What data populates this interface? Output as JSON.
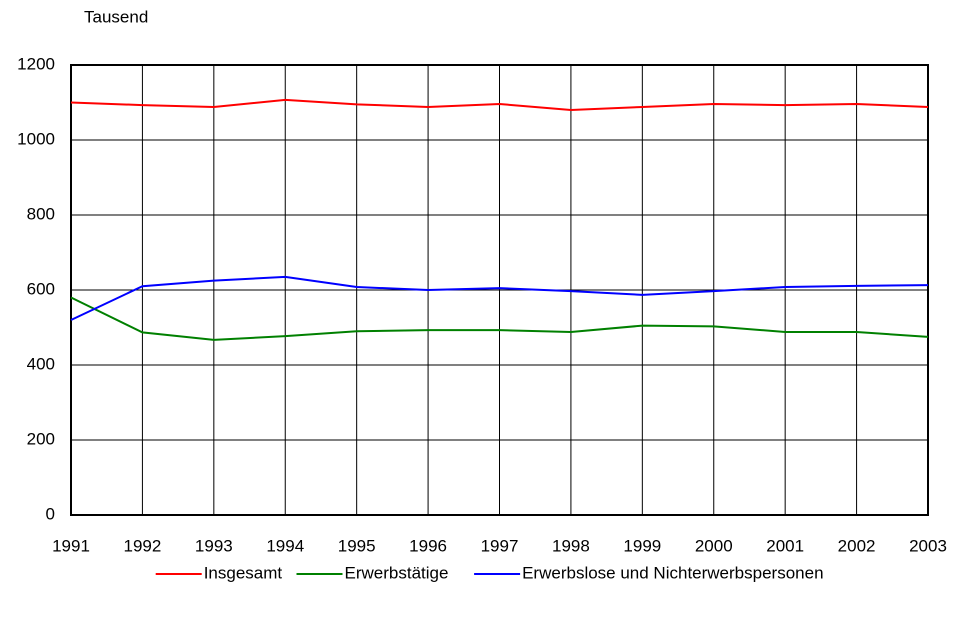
{
  "chart_data": {
    "type": "line",
    "y_label": "Tausend",
    "x": [
      1991,
      1992,
      1993,
      1994,
      1995,
      1996,
      1997,
      1998,
      1999,
      2000,
      2001,
      2002,
      2003
    ],
    "xlim": [
      1991,
      2003
    ],
    "xticks": [
      1991,
      1992,
      1993,
      1994,
      1995,
      1996,
      1997,
      1998,
      1999,
      2000,
      2001,
      2002,
      2003
    ],
    "ylim": [
      0,
      1200
    ],
    "yticks": [
      0,
      200,
      400,
      600,
      800,
      1000,
      1200
    ],
    "grid": true,
    "legend": "bottom",
    "series": [
      {
        "name": "Insgesamt",
        "color": "#ff0000",
        "values": [
          1100,
          1093,
          1088,
          1107,
          1095,
          1088,
          1096,
          1080,
          1088,
          1096,
          1093,
          1096,
          1088
        ]
      },
      {
        "name": "Erwerbstätige",
        "color": "#008000",
        "values": [
          580,
          487,
          467,
          477,
          490,
          493,
          493,
          488,
          505,
          503,
          488,
          488,
          475
        ]
      },
      {
        "name": "Erwerbslose und Nichterwerbspersonen",
        "color": "#0000ff",
        "values": [
          520,
          610,
          625,
          635,
          608,
          600,
          605,
          597,
          587,
          597,
          608,
          611,
          613
        ]
      }
    ]
  }
}
